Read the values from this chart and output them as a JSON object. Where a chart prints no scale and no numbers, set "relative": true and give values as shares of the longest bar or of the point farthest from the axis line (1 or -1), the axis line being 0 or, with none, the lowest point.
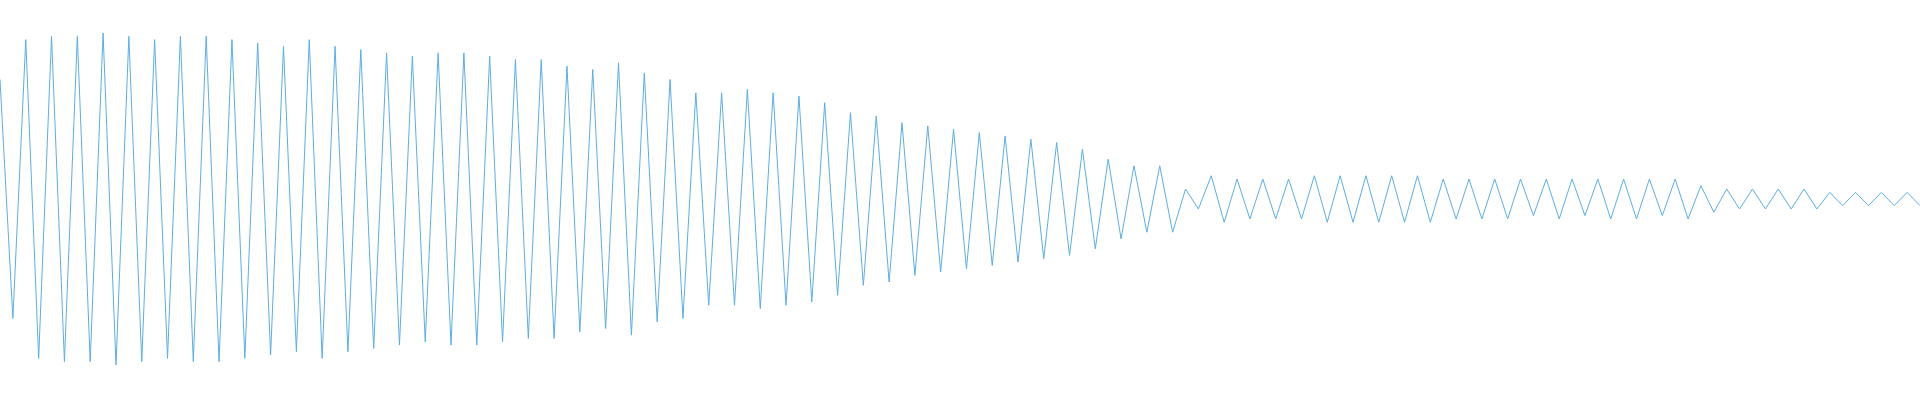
{
  "chart_data": {
    "type": "line",
    "relative": true,
    "color": "#5dade2",
    "categories": [
      null,
      null,
      null,
      null,
      null,
      null,
      null,
      null,
      null,
      null,
      null,
      null,
      null,
      null,
      null,
      null,
      null,
      null,
      null,
      null,
      null,
      null,
      null,
      null,
      null,
      null,
      null,
      null,
      null,
      null,
      null,
      null,
      null,
      null,
      null,
      null,
      null,
      null,
      null,
      null,
      null,
      null,
      null,
      null,
      null,
      null,
      null,
      null,
      null,
      null,
      null,
      null,
      null,
      null,
      null,
      null,
      null,
      null,
      null,
      null,
      null,
      null,
      null,
      null,
      null,
      null,
      null,
      null,
      null,
      null,
      null,
      null,
      null,
      null,
      null,
      null,
      null,
      null,
      null,
      null,
      null,
      null,
      null,
      null,
      null,
      null,
      null,
      null,
      null,
      null,
      null,
      null,
      null,
      null,
      null,
      null,
      null,
      null,
      null,
      null,
      null,
      null,
      null,
      null,
      null,
      null,
      null,
      null,
      null,
      null,
      null,
      null,
      null,
      null,
      null,
      null,
      null,
      null,
      null,
      null,
      null,
      null,
      null,
      null,
      null,
      null,
      null,
      null,
      null,
      null,
      null,
      null,
      null,
      null,
      null,
      null,
      null,
      null,
      null,
      null,
      null,
      null,
      null,
      null,
      null,
      null,
      null,
      null,
      null,
      null
    ],
    "values": [
      0.86,
      0.14,
      0.98,
      0.02,
      0.99,
      0.01,
      0.99,
      0.01,
      1,
      0,
      0.99,
      0.01,
      0.98,
      0.02,
      0.99,
      0.01,
      0.99,
      0.01,
      0.98,
      0.02,
      0.97,
      0.03,
      0.96,
      0.04,
      0.98,
      0.02,
      0.96,
      0.04,
      0.95,
      0.05,
      0.94,
      0.06,
      0.93,
      0.07,
      0.94,
      0.06,
      0.94,
      0.06,
      0.93,
      0.07,
      0.92,
      0.08,
      0.92,
      0.08,
      0.9,
      0.1,
      0.89,
      0.11,
      0.91,
      0.09,
      0.88,
      0.13,
      0.86,
      0.14,
      0.82,
      0.18,
      0.82,
      0.18,
      0.83,
      0.17,
      0.82,
      0.18,
      0.81,
      0.19,
      0.79,
      0.21,
      0.76,
      0.24,
      0.75,
      0.25,
      0.73,
      0.27,
      0.72,
      0.28,
      0.71,
      0.29,
      0.7,
      0.3,
      0.69,
      0.31,
      0.68,
      0.32,
      0.67,
      0.33,
      0.65,
      0.35,
      0.62,
      0.38,
      0.6,
      0.4,
      0.6,
      0.4,
      0.53,
      0.47,
      0.57,
      0.43,
      0.56,
      0.44,
      0.56,
      0.44,
      0.56,
      0.44,
      0.57,
      0.43,
      0.57,
      0.43,
      0.57,
      0.43,
      0.57,
      0.43,
      0.57,
      0.43,
      0.56,
      0.44,
      0.56,
      0.44,
      0.56,
      0.44,
      0.56,
      0.45,
      0.56,
      0.44,
      0.56,
      0.45,
      0.56,
      0.44,
      0.56,
      0.44,
      0.56,
      0.45,
      0.56,
      0.44,
      0.54,
      0.46,
      0.53,
      0.47,
      0.53,
      0.47,
      0.53,
      0.47,
      0.53,
      0.47,
      0.52,
      0.48,
      0.52,
      0.48,
      0.52,
      0.48,
      0.52,
      0.48
    ]
  }
}
